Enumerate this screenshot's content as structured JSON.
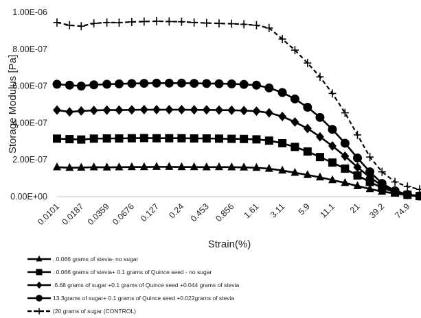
{
  "chart_data": {
    "type": "line",
    "xlabel": "Strain(%)",
    "ylabel": "Storage Modulus [Pa]",
    "x_scale": "log",
    "x_tick_labels": [
      "0.0101",
      "0.0187",
      "0.0359",
      "0.0676",
      "0.127",
      "0.24",
      "0.453",
      "0.856",
      "1.61",
      "3.11",
      "5.9",
      "11.1",
      "21",
      "39.2",
      "74.9"
    ],
    "y_tick_labels": [
      "0.00E+00",
      "2.00E-07",
      "4.00E-07",
      "6.00E-07",
      "8.00E-07",
      "1.00E-06"
    ],
    "ylim": [
      0,
      1e-06
    ],
    "grid": false,
    "legend_position": "bottom-left",
    "x": [
      0.0101,
      0.0139,
      0.0187,
      0.0258,
      0.0359,
      0.049,
      0.0676,
      0.0925,
      0.127,
      0.175,
      0.24,
      0.33,
      0.453,
      0.622,
      0.856,
      1.17,
      1.61,
      2.22,
      3.11,
      4.28,
      5.9,
      8.1,
      11.1,
      15.3,
      21,
      28.8,
      39.2,
      54.5,
      74.9,
      102
    ],
    "series": [
      {
        "name": ". 0.066 grams of stevia-  no sugar",
        "marker": "triangle",
        "line": "solid",
        "values": [
          1.6e-07,
          1.57e-07,
          1.58e-07,
          1.6e-07,
          1.59e-07,
          1.6e-07,
          1.61e-07,
          1.61e-07,
          1.62e-07,
          1.62e-07,
          1.61e-07,
          1.61e-07,
          1.6e-07,
          1.61e-07,
          1.6e-07,
          1.59e-07,
          1.57e-07,
          1.52e-07,
          1.42e-07,
          1.3e-07,
          1.18e-07,
          1.05e-07,
          9e-08,
          7.5e-08,
          5.8e-08,
          4.2e-08,
          2.8e-08,
          1.7e-08,
          8e-09,
          2e-09
        ]
      },
      {
        "name": ". 0.066 grams of stevia+ 0.1 grams of Quince seed - no sugar",
        "marker": "square",
        "line": "solid",
        "values": [
          3.15e-07,
          3.12e-07,
          3.1e-07,
          3.15e-07,
          3.16e-07,
          3.16e-07,
          3.17e-07,
          3.18e-07,
          3.17e-07,
          3.17e-07,
          3.17e-07,
          3.16e-07,
          3.16e-07,
          3.15e-07,
          3.14e-07,
          3.13e-07,
          3.11e-07,
          3.04e-07,
          2.9e-07,
          2.7e-07,
          2.45e-07,
          2.15e-07,
          1.85e-07,
          1.52e-07,
          1.15e-07,
          8e-08,
          4.8e-08,
          2.4e-08,
          1e-08,
          3e-09
        ]
      },
      {
        "name": ".6.68 grams of sugar +0.1 grams of Quince seed  +0.044 grams of stevia",
        "marker": "diamond",
        "line": "solid",
        "values": [
          4.7e-07,
          4.6e-07,
          4.65e-07,
          4.68e-07,
          4.7e-07,
          4.7e-07,
          4.71e-07,
          4.72e-07,
          4.72e-07,
          4.72e-07,
          4.72e-07,
          4.71e-07,
          4.71e-07,
          4.7e-07,
          4.69e-07,
          4.67e-07,
          4.64e-07,
          4.55e-07,
          4.35e-07,
          4.05e-07,
          3.7e-07,
          3.25e-07,
          2.75e-07,
          2.2e-07,
          1.6e-07,
          1.05e-07,
          6e-08,
          2.8e-08,
          1.2e-08,
          4e-09
        ]
      },
      {
        "name": "13.3grams of sugar+  0.1 grams of Quince seed +0.022grams of stevia",
        "marker": "circle",
        "line": "solid",
        "values": [
          6.1e-07,
          6.05e-07,
          6e-07,
          6.07e-07,
          6.1e-07,
          6.12e-07,
          6.14e-07,
          6.15e-07,
          6.16e-07,
          6.16e-07,
          6.16e-07,
          6.15e-07,
          6.14e-07,
          6.13e-07,
          6.12e-07,
          6.09e-07,
          6.05e-07,
          5.9e-07,
          5.65e-07,
          5.3e-07,
          4.85e-07,
          4.3e-07,
          3.65e-07,
          2.9e-07,
          2.1e-07,
          1.35e-07,
          7.2e-08,
          3.2e-08,
          1.2e-08,
          4e-09
        ]
      },
      {
        "name": "(20 grams of sugar (CONTROL)",
        "marker": "plus",
        "line": "dashed",
        "values": [
          9.45e-07,
          9.3e-07,
          9.25e-07,
          9.4e-07,
          9.45e-07,
          9.44e-07,
          9.48e-07,
          9.5e-07,
          9.52e-07,
          9.5e-07,
          9.49e-07,
          9.45e-07,
          9.42e-07,
          9.4e-07,
          9.38e-07,
          9.35e-07,
          9.3e-07,
          9.15e-07,
          8.55e-07,
          7.95e-07,
          7.25e-07,
          6.5e-07,
          5.6e-07,
          4.55e-07,
          3.35e-07,
          2.15e-07,
          1.35e-07,
          8e-08,
          5.5e-08,
          4e-08
        ]
      }
    ]
  }
}
